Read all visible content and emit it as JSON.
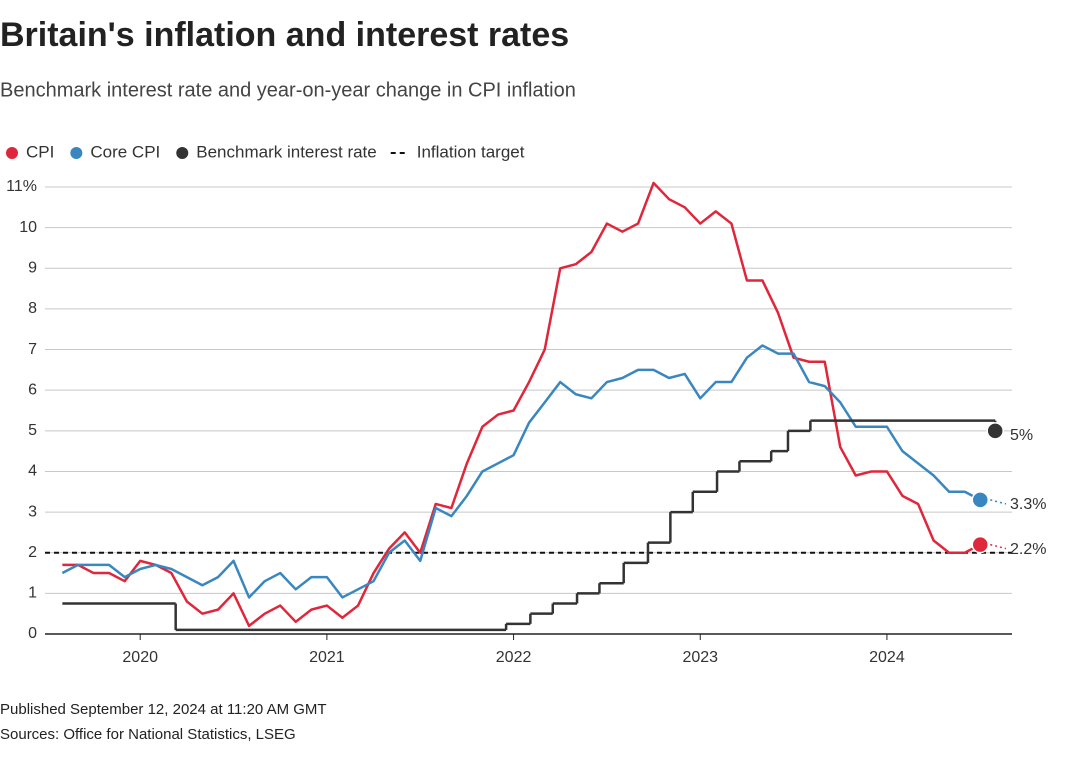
{
  "chart_data": {
    "type": "line",
    "title": "Britain's inflation and interest rates",
    "subtitle": "Benchmark interest rate and year-on-year change in CPI inflation",
    "published": "Published September 12, 2024 at 11:20 AM GMT",
    "source": "Sources: Office for National Statistics, LSEG",
    "xlim": [
      2019.49,
      2024.67
    ],
    "xticks": [
      2020,
      2021,
      2022,
      2023,
      2024
    ],
    "ylim": [
      0,
      11
    ],
    "yticks": [
      0,
      1,
      2,
      3,
      4,
      5,
      6,
      7,
      8,
      9,
      10,
      {
        "value": 11,
        "label": "11%"
      }
    ],
    "grid": true,
    "x": [
      2019.583,
      2019.667,
      2019.75,
      2019.833,
      2019.917,
      2020,
      2020.083,
      2020.167,
      2020.25,
      2020.333,
      2020.417,
      2020.5,
      2020.583,
      2020.667,
      2020.75,
      2020.833,
      2020.917,
      2021,
      2021.083,
      2021.167,
      2021.25,
      2021.333,
      2021.417,
      2021.5,
      2021.583,
      2021.667,
      2021.75,
      2021.833,
      2021.917,
      2022,
      2022.083,
      2022.167,
      2022.25,
      2022.333,
      2022.417,
      2022.5,
      2022.583,
      2022.667,
      2022.75,
      2022.833,
      2022.917,
      2023,
      2023.083,
      2023.167,
      2023.25,
      2023.333,
      2023.417,
      2023.5,
      2023.583,
      2023.667,
      2023.75,
      2023.833,
      2023.917,
      2024,
      2024.083,
      2024.167,
      2024.25,
      2024.333,
      2024.417,
      2024.5
    ],
    "series": [
      {
        "name": "CPI",
        "color": "#e0263a",
        "end_label": "2.2%",
        "values": [
          1.7,
          1.7,
          1.5,
          1.5,
          1.3,
          1.8,
          1.7,
          1.5,
          0.8,
          0.5,
          0.6,
          1.0,
          0.2,
          0.5,
          0.7,
          0.3,
          0.6,
          0.7,
          0.4,
          0.7,
          1.5,
          2.1,
          2.5,
          2.0,
          3.2,
          3.1,
          4.2,
          5.1,
          5.4,
          5.5,
          6.2,
          7.0,
          9.0,
          9.1,
          9.4,
          10.1,
          9.9,
          10.1,
          11.1,
          10.7,
          10.5,
          10.1,
          10.4,
          10.1,
          8.7,
          8.7,
          7.9,
          6.8,
          6.7,
          6.7,
          4.6,
          3.9,
          4.0,
          4.0,
          3.4,
          3.2,
          2.3,
          2.0,
          2.0,
          2.2
        ]
      },
      {
        "name": "Core CPI",
        "color": "#3a87c0",
        "end_label": "3.3%",
        "values": [
          1.5,
          1.7,
          1.7,
          1.7,
          1.4,
          1.6,
          1.7,
          1.6,
          1.4,
          1.2,
          1.4,
          1.8,
          0.9,
          1.3,
          1.5,
          1.1,
          1.4,
          1.4,
          0.9,
          1.1,
          1.3,
          2.0,
          2.3,
          1.8,
          3.1,
          2.9,
          3.4,
          4.0,
          4.2,
          4.4,
          5.2,
          5.7,
          6.2,
          5.9,
          5.8,
          6.2,
          6.3,
          6.5,
          6.5,
          6.3,
          6.4,
          5.8,
          6.2,
          6.2,
          6.8,
          7.1,
          6.9,
          6.9,
          6.2,
          6.1,
          5.7,
          5.1,
          5.1,
          5.1,
          4.5,
          4.2,
          3.9,
          3.5,
          3.5,
          3.3
        ]
      },
      {
        "name": "Benchmark interest rate",
        "color": "#333333",
        "end_label": "5%",
        "step": true,
        "x": [
          2019.583,
          2020.19,
          2021.96,
          2022.09,
          2022.21,
          2022.34,
          2022.46,
          2022.59,
          2022.72,
          2022.84,
          2022.96,
          2023.09,
          2023.21,
          2023.38,
          2023.47,
          2023.59,
          2024.58
        ],
        "values": [
          0.75,
          0.1,
          0.25,
          0.5,
          0.75,
          1,
          1.25,
          1.75,
          2.25,
          3,
          3.5,
          4,
          4.25,
          4.5,
          5,
          5.25,
          5
        ]
      }
    ],
    "target": {
      "name": "Inflation target",
      "value": 2,
      "color": "#111111"
    }
  }
}
